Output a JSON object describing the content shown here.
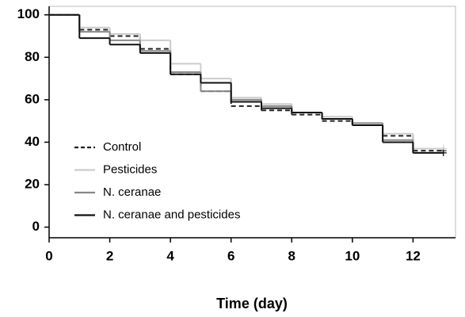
{
  "chart_data": {
    "type": "step",
    "x_label": "Time (day)",
    "x": [
      0,
      1,
      2,
      3,
      4,
      5,
      6,
      7,
      8,
      9,
      10,
      11,
      12,
      13
    ],
    "series": [
      {
        "name": "Control",
        "color": "#222222",
        "dashed": true,
        "values": [
          100,
          93,
          90,
          84,
          72,
          64,
          57,
          55,
          53,
          50,
          48,
          43,
          36,
          36
        ]
      },
      {
        "name": "Pesticides",
        "color": "#cccccc",
        "dashed": false,
        "values": [
          100,
          94,
          91,
          88,
          77,
          70,
          61,
          58,
          54,
          52,
          49,
          44,
          37,
          37
        ]
      },
      {
        "name": "N. ceranae",
        "color": "#888888",
        "dashed": false,
        "values": [
          100,
          92,
          88,
          83,
          73,
          64,
          60,
          57,
          54,
          51,
          49,
          41,
          35,
          35
        ]
      },
      {
        "name": "N. ceranae and pesticides",
        "color": "#111111",
        "dashed": false,
        "values": [
          100,
          89,
          86,
          82,
          72,
          68,
          59,
          56,
          54,
          51,
          48,
          40,
          35,
          35
        ]
      }
    ],
    "xlim": [
      0,
      13.4
    ],
    "ylim": [
      -5,
      104
    ],
    "xticks": [
      0,
      2,
      4,
      6,
      8,
      10,
      12
    ],
    "yticks": [
      0,
      20,
      40,
      60,
      80,
      100
    ]
  }
}
